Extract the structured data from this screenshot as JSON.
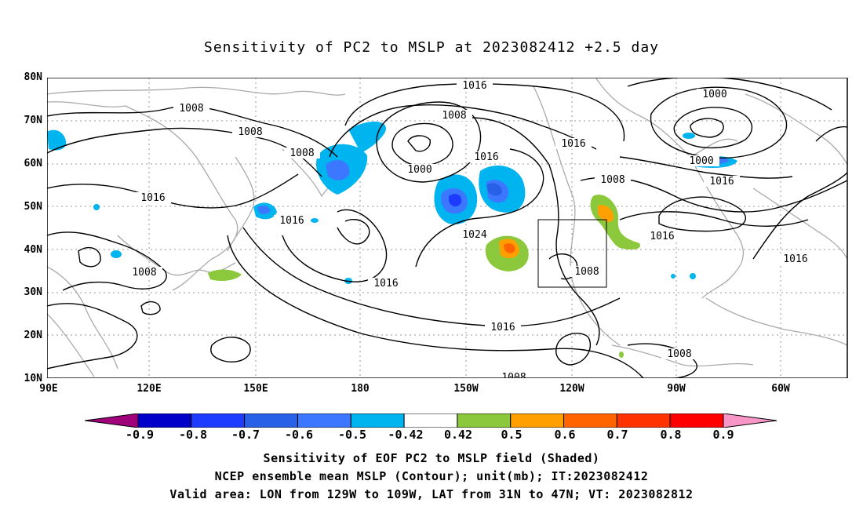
{
  "title": "Sensitivity of PC2 to MSLP at 2023082412 +2.5 day",
  "lat_labels": [
    "80N",
    "70N",
    "60N",
    "50N",
    "40N",
    "30N",
    "20N",
    "10N"
  ],
  "lon_labels": [
    "90E",
    "120E",
    "150E",
    "180",
    "150W",
    "120W",
    "90W",
    "60W"
  ],
  "contour_labels": [
    "1016",
    "1008",
    "1000",
    "1016",
    "1008",
    "1008",
    "1016",
    "1000",
    "1000",
    "1016",
    "1008",
    "1016",
    "1008",
    "1016",
    "1024",
    "1016",
    "1016",
    "1008",
    "1008",
    "1016",
    "1016",
    "1008",
    "1008"
  ],
  "colorbar": {
    "labels": [
      "-0.9",
      "-0.8",
      "-0.7",
      "-0.6",
      "-0.5",
      "-0.42",
      "0.42",
      "0.5",
      "0.6",
      "0.7",
      "0.8",
      "0.9"
    ],
    "colors": [
      "#a0007a",
      "#0000c8",
      "#1e3cff",
      "#2860e8",
      "#3c78ff",
      "#00b4f0",
      "#ffffff",
      "#8cc83c",
      "#ffa000",
      "#ff6400",
      "#ff3200",
      "#ff0000",
      "#f896c8"
    ]
  },
  "captions": [
    "Sensitivity of EOF PC2 to MSLP field (Shaded)",
    "NCEP ensemble mean MSLP (Contour); unit(mb); IT:2023082412",
    "Valid area: LON from 129W to 109W, LAT from 31N to 47N; VT: 2023082812"
  ]
}
